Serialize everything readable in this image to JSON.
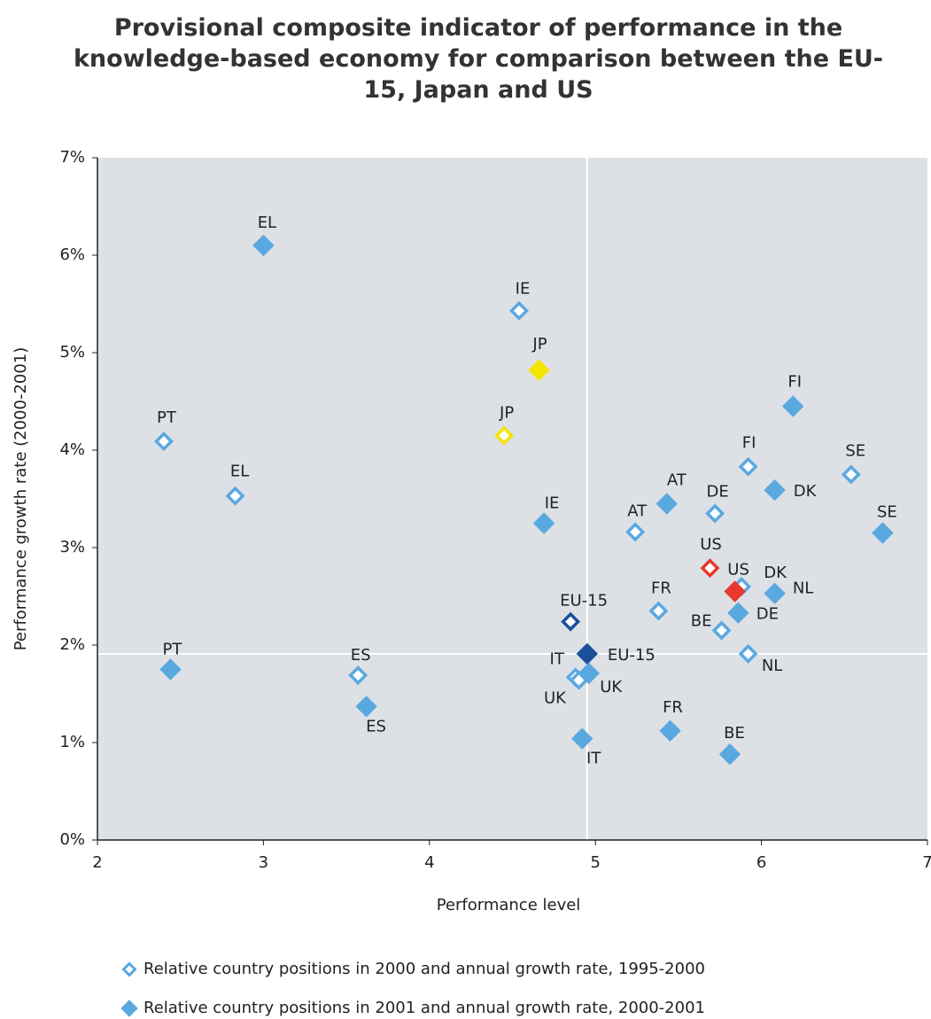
{
  "chart_data": {
    "type": "scatter",
    "title": "Provisional composite indicator of performance in the knowledge-based economy for comparison between the EU-15, Japan and US",
    "x_label": "Performance level",
    "y_label": "Performance growth rate (2000-2001)",
    "xlim": [
      2,
      7
    ],
    "ylim": [
      0,
      7
    ],
    "xticks": [
      2,
      3,
      4,
      5,
      6,
      7
    ],
    "yticks": [
      {
        "value": 0,
        "label": "0%"
      },
      {
        "value": 1,
        "label": "1%"
      },
      {
        "value": 2,
        "label": "2%"
      },
      {
        "value": 3,
        "label": "3%"
      },
      {
        "value": 4,
        "label": "4%"
      },
      {
        "value": 5,
        "label": "5%"
      },
      {
        "value": 6,
        "label": "6%"
      },
      {
        "value": 7,
        "label": "7%"
      }
    ],
    "series": [
      {
        "name": "Relative country positions in 2000 and annual growth rate, 1995-2000",
        "marker": "hollow",
        "color": "#5aa8e0",
        "labels": [
          "PT",
          "EL",
          "ES",
          "IE",
          "JP",
          "EU-15",
          "IT",
          "UK",
          "AT",
          "FR",
          "DE",
          "US",
          "BE",
          "FI",
          "NL",
          "DK",
          "SE"
        ],
        "colors": [
          "#5aa8e0",
          "#5aa8e0",
          "#5aa8e0",
          "#5aa8e0",
          "#f5e400",
          "#1a4f9c",
          "#5aa8e0",
          "#5aa8e0",
          "#5aa8e0",
          "#5aa8e0",
          "#5aa8e0",
          "#e8392e",
          "#5aa8e0",
          "#5aa8e0",
          "#5aa8e0",
          "#5aa8e0",
          "#5aa8e0"
        ],
        "x": [
          2.4,
          2.83,
          3.57,
          4.54,
          4.45,
          4.85,
          4.88,
          4.9,
          5.24,
          5.38,
          5.72,
          5.69,
          5.76,
          5.92,
          5.92,
          5.88,
          6.54
        ],
        "values": [
          4.09,
          3.53,
          1.69,
          5.43,
          4.15,
          2.24,
          1.67,
          1.64,
          3.16,
          2.35,
          3.35,
          2.79,
          2.15,
          3.83,
          1.91,
          2.6,
          3.75
        ]
      },
      {
        "name": "Relative country positions in 2001 and annual growth rate, 2000-2001",
        "marker": "filled",
        "color": "#5aa8e0",
        "labels": [
          "EL",
          "PT",
          "ES",
          "JP",
          "IE",
          "EU-15",
          "UK",
          "IT",
          "AT",
          "FR",
          "US",
          "DE",
          "DK",
          "NL",
          "FI",
          "SE",
          "BE"
        ],
        "colors": [
          "#5aa8e0",
          "#5aa8e0",
          "#5aa8e0",
          "#f5e400",
          "#5aa8e0",
          "#1a4f9c",
          "#5aa8e0",
          "#5aa8e0",
          "#5aa8e0",
          "#5aa8e0",
          "#e8392e",
          "#5aa8e0",
          "#5aa8e0",
          "#5aa8e0",
          "#5aa8e0",
          "#5aa8e0",
          "#5aa8e0"
        ],
        "x": [
          3.0,
          2.44,
          3.62,
          4.66,
          4.69,
          4.95,
          4.96,
          4.92,
          5.43,
          5.45,
          5.84,
          5.86,
          6.08,
          6.08,
          6.19,
          6.73,
          5.81
        ],
        "values": [
          6.1,
          1.75,
          1.37,
          4.82,
          3.25,
          1.91,
          1.71,
          1.04,
          3.45,
          1.12,
          2.55,
          2.33,
          3.59,
          2.53,
          4.45,
          3.15,
          0.88
        ]
      }
    ]
  }
}
